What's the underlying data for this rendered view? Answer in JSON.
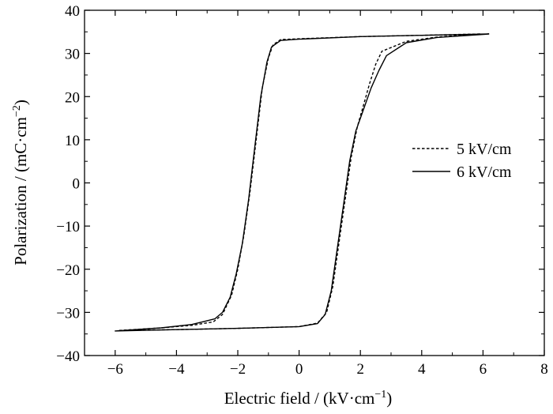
{
  "chart_data": {
    "type": "line",
    "xlabel_main": "Electric field / (kV·cm",
    "xlabel_sup": "−1",
    "xlabel_end": ")",
    "ylabel_main": "Polarization / (mC·cm",
    "ylabel_sup": "−2",
    "ylabel_end": ")",
    "xlim": [
      -7,
      8
    ],
    "ylim": [
      -40,
      40
    ],
    "x_ticks": [
      -6,
      -4,
      -2,
      0,
      2,
      4,
      6,
      8
    ],
    "x_tick_labels": [
      "−6",
      "−4",
      "−2",
      "0",
      "2",
      "4",
      "6",
      "8"
    ],
    "y_ticks": [
      -40,
      -30,
      -20,
      -10,
      0,
      10,
      20,
      30,
      40
    ],
    "y_tick_labels": [
      "−40",
      "−30",
      "−20",
      "−10",
      "0",
      "10",
      "20",
      "30",
      "40"
    ],
    "grid": false,
    "legend_position": "right",
    "series": [
      {
        "name": "5 kV/cm",
        "style": "dashed",
        "color": "#000000",
        "upper_branch": {
          "x": [
            5.9,
            4.0,
            2.0,
            0.0,
            -0.6,
            -0.85,
            -1.0,
            -1.2,
            -1.4,
            -1.6,
            -1.8,
            -2.0,
            -2.2,
            -2.5,
            -2.8,
            -3.5,
            -4.5,
            -5.9
          ],
          "y": [
            34.5,
            34.2,
            33.9,
            33.4,
            33.2,
            32.0,
            29.0,
            22.0,
            10.0,
            -2.0,
            -12.0,
            -20.0,
            -26.0,
            -30.5,
            -32.2,
            -33.0,
            -33.6,
            -34.2
          ]
        },
        "lower_branch": {
          "x": [
            -5.9,
            -4.0,
            -2.0,
            0.0,
            0.6,
            0.9,
            1.1,
            1.3,
            1.5,
            1.7,
            1.9,
            2.1,
            2.3,
            2.5,
            2.7,
            3.5,
            4.5,
            5.9
          ],
          "y": [
            -34.2,
            -34.0,
            -33.7,
            -33.3,
            -32.5,
            -30.0,
            -24.0,
            -14.0,
            -4.0,
            6.0,
            13.0,
            18.0,
            23.0,
            27.5,
            30.5,
            32.8,
            33.8,
            34.5
          ]
        }
      },
      {
        "name": "6 kV/cm",
        "style": "solid",
        "color": "#000000",
        "upper_branch": {
          "x": [
            6.2,
            4.0,
            2.0,
            0.0,
            -0.6,
            -0.9,
            -1.05,
            -1.25,
            -1.45,
            -1.65,
            -1.85,
            -2.05,
            -2.25,
            -2.5,
            -2.75,
            -3.5,
            -4.5,
            -6.0
          ],
          "y": [
            34.5,
            34.2,
            33.9,
            33.3,
            33.0,
            31.5,
            28.0,
            20.0,
            8.0,
            -4.0,
            -14.0,
            -21.0,
            -26.5,
            -30.0,
            -31.5,
            -32.8,
            -33.6,
            -34.3
          ]
        },
        "lower_branch": {
          "x": [
            -6.0,
            -4.0,
            -2.0,
            0.0,
            0.6,
            0.85,
            1.05,
            1.25,
            1.45,
            1.65,
            1.85,
            2.1,
            2.35,
            2.6,
            2.85,
            3.5,
            4.5,
            6.2
          ],
          "y": [
            -34.3,
            -34.0,
            -33.7,
            -33.3,
            -32.6,
            -30.5,
            -25.0,
            -15.0,
            -5.0,
            5.0,
            12.0,
            17.0,
            22.0,
            26.0,
            29.5,
            32.5,
            33.7,
            34.5
          ]
        }
      }
    ]
  }
}
